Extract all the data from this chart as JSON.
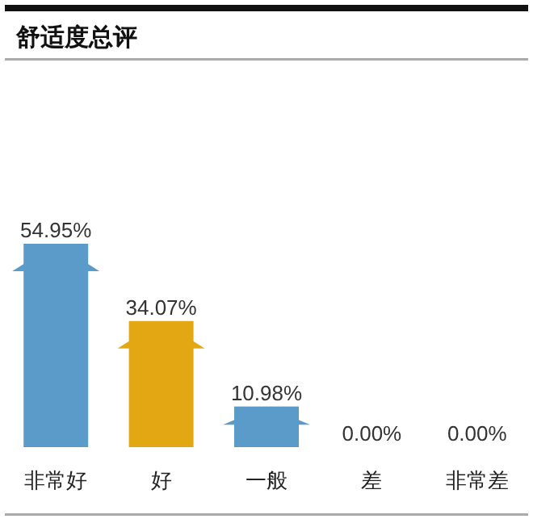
{
  "chart_data": {
    "type": "bar",
    "title": "舒适度总评",
    "categories": [
      "非常好",
      "好",
      "一般",
      "差",
      "非常差"
    ],
    "values": [
      54.95,
      34.07,
      10.98,
      0,
      0
    ],
    "colors": [
      "#5b9bc9",
      "#e2a713",
      "#5b9bc9",
      "#5b9bc9",
      "#5b9bc9"
    ],
    "value_labels": [
      "54.95%",
      "34.07%",
      "10.98%",
      "0.00%",
      "0.00%"
    ]
  }
}
